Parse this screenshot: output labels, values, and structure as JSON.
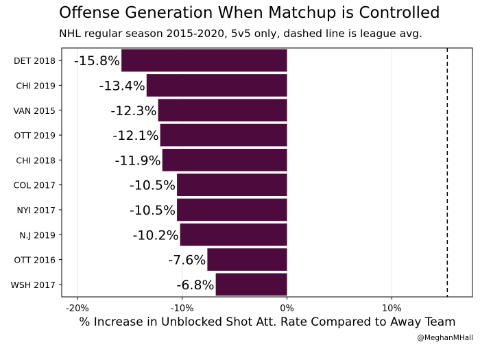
{
  "header": {
    "title": "Offense Generation When Matchup is Controlled",
    "subtitle": "NHL regular season 2015-2020, 5v5 only, dashed line is league avg."
  },
  "footer": {
    "credit": "@MeghanMHall"
  },
  "chart_data": {
    "type": "bar",
    "orientation": "horizontal",
    "title": "Offense Generation When Matchup is Controlled",
    "subtitle": "NHL regular season 2015-2020, 5v5 only, dashed line is league avg.",
    "xlabel": "% Increase in Unblocked Shot Att. Rate Compared to Away Team",
    "ylabel": "",
    "categories": [
      "DET 2018",
      "CHI 2019",
      "VAN 2015",
      "OTT 2019",
      "CHI 2018",
      "COL 2017",
      "NYI 2017",
      "N.J 2019",
      "OTT 2016",
      "WSH 2017"
    ],
    "values": [
      -15.8,
      -13.4,
      -12.3,
      -12.1,
      -11.9,
      -10.5,
      -10.5,
      -10.2,
      -7.6,
      -6.8
    ],
    "value_labels": [
      "-15.8%",
      "-13.4%",
      "-12.3%",
      "-12.1%",
      "-11.9%",
      "-10.5%",
      "-10.5%",
      "-10.2%",
      "-7.6%",
      "-6.8%"
    ],
    "xlim": [
      -21.5,
      17.7
    ],
    "xticks": [
      -20,
      -10,
      0,
      10
    ],
    "xtick_labels": [
      "-20%",
      "-10%",
      "0%",
      "10%"
    ],
    "reference_line": {
      "value": 15.3,
      "style": "dashed"
    },
    "grid": "vertical major",
    "bar_color": "#4d0a3c",
    "grid_color": "#e6e6e6"
  }
}
